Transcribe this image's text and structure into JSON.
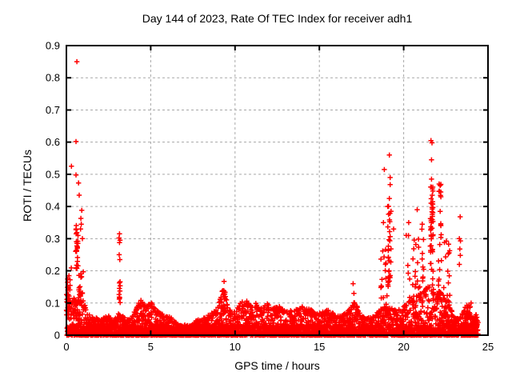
{
  "chart_data": {
    "type": "scatter",
    "title": "Day 144 of 2023, Rate Of TEC Index for receiver adh1",
    "xlabel": "GPS time / hours",
    "ylabel": "ROTI / TECUs",
    "xlim": [
      0,
      25
    ],
    "ylim": [
      0,
      0.9
    ],
    "xticks": [
      0,
      5,
      10,
      15,
      20,
      25
    ],
    "yticks": [
      0,
      0.1,
      0.2,
      0.3,
      0.4,
      0.5,
      0.6,
      0.7,
      0.8,
      0.9
    ],
    "grid": true,
    "grid_color": "#a8a8a8",
    "axis_color": "#000000",
    "background": "#ffffff",
    "legend": "none",
    "marker": "plus",
    "marker_color": "#ff0000",
    "series": {
      "name": "ROTI",
      "x_end": 24.4,
      "dense_band_ymax": 0.032,
      "envelope": [
        [
          0,
          0.13
        ],
        [
          0.3,
          0.12
        ],
        [
          0.6,
          0.11
        ],
        [
          0.9,
          0.12
        ],
        [
          1.2,
          0.08
        ],
        [
          1.5,
          0.06
        ],
        [
          2,
          0.05
        ],
        [
          2.5,
          0.06
        ],
        [
          2.8,
          0.045
        ],
        [
          3.1,
          0.07
        ],
        [
          3.4,
          0.06
        ],
        [
          3.8,
          0.05
        ],
        [
          4.2,
          0.09
        ],
        [
          4.4,
          0.115
        ],
        [
          4.7,
          0.09
        ],
        [
          5,
          0.105
        ],
        [
          5.3,
          0.08
        ],
        [
          5.7,
          0.065
        ],
        [
          6.2,
          0.055
        ],
        [
          6.6,
          0.035
        ],
        [
          7,
          0.025
        ],
        [
          7.4,
          0.03
        ],
        [
          7.8,
          0.05
        ],
        [
          8.2,
          0.055
        ],
        [
          8.6,
          0.07
        ],
        [
          9,
          0.09
        ],
        [
          9.35,
          0.16
        ],
        [
          9.6,
          0.08
        ],
        [
          10,
          0.075
        ],
        [
          10.3,
          0.1
        ],
        [
          10.7,
          0.11
        ],
        [
          11,
          0.09
        ],
        [
          11.3,
          0.105
        ],
        [
          11.6,
          0.08
        ],
        [
          11.9,
          0.1
        ],
        [
          12.3,
          0.085
        ],
        [
          12.7,
          0.09
        ],
        [
          13.1,
          0.075
        ],
        [
          13.5,
          0.08
        ],
        [
          13.9,
          0.09
        ],
        [
          14.3,
          0.085
        ],
        [
          14.7,
          0.075
        ],
        [
          15.1,
          0.07
        ],
        [
          15.5,
          0.08
        ],
        [
          15.9,
          0.065
        ],
        [
          16.3,
          0.06
        ],
        [
          16.7,
          0.075
        ],
        [
          17.1,
          0.105
        ],
        [
          17.5,
          0.06
        ],
        [
          17.9,
          0.055
        ],
        [
          18.3,
          0.065
        ],
        [
          18.6,
          0.08
        ],
        [
          19,
          0.1
        ],
        [
          19.3,
          0.09
        ],
        [
          19.6,
          0.075
        ],
        [
          20,
          0.09
        ],
        [
          20.3,
          0.11
        ],
        [
          20.6,
          0.12
        ],
        [
          21,
          0.13
        ],
        [
          21.4,
          0.15
        ],
        [
          21.7,
          0.16
        ],
        [
          22,
          0.14
        ],
        [
          22.3,
          0.13
        ],
        [
          22.6,
          0.11
        ],
        [
          22.9,
          0.07
        ],
        [
          23.1,
          0.05
        ],
        [
          23.4,
          0.06
        ],
        [
          23.65,
          0.09
        ],
        [
          23.85,
          0.08
        ],
        [
          24.1,
          0.05
        ],
        [
          24.25,
          0.065
        ],
        [
          24.4,
          0.04
        ]
      ],
      "clusters": [
        {
          "x": 0.12,
          "sx": 0.1,
          "y0": 0.05,
          "y1": 0.185,
          "n": 22
        },
        {
          "x": 0.62,
          "sx": 0.07,
          "y0": 0.2,
          "y1": 0.345,
          "n": 24
        },
        {
          "x": 0.85,
          "sx": 0.12,
          "y0": 0.1,
          "y1": 0.2,
          "n": 16
        },
        {
          "x": 3.15,
          "sx": 0.04,
          "y0": 0.09,
          "y1": 0.175,
          "n": 10
        },
        {
          "x": 9.35,
          "sx": 0.07,
          "y0": 0.07,
          "y1": 0.155,
          "n": 12
        },
        {
          "x": 18.9,
          "sx": 0.25,
          "y0": 0.1,
          "y1": 0.3,
          "n": 20
        },
        {
          "x": 19.15,
          "sx": 0.1,
          "y0": 0.15,
          "y1": 0.42,
          "n": 24
        },
        {
          "x": 20.7,
          "sx": 0.5,
          "y0": 0.1,
          "y1": 0.33,
          "n": 30
        },
        {
          "x": 21.66,
          "sx": 0.07,
          "y0": 0.38,
          "y1": 0.465,
          "n": 16
        },
        {
          "x": 21.66,
          "sx": 0.09,
          "y0": 0.14,
          "y1": 0.4,
          "n": 30
        },
        {
          "x": 22.15,
          "sx": 0.09,
          "y0": 0.1,
          "y1": 0.47,
          "n": 26
        },
        {
          "x": 22.55,
          "sx": 0.2,
          "y0": 0.08,
          "y1": 0.3,
          "n": 20
        },
        {
          "x": 23.8,
          "sx": 0.15,
          "y0": 0.04,
          "y1": 0.095,
          "n": 12
        },
        {
          "x": 24.25,
          "sx": 0.1,
          "y0": 0.02,
          "y1": 0.065,
          "n": 10
        }
      ],
      "outliers": [
        [
          0.62,
          0.85
        ],
        [
          0.57,
          0.602
        ],
        [
          0.3,
          0.525
        ],
        [
          0.57,
          0.498
        ],
        [
          0.72,
          0.473
        ],
        [
          0.76,
          0.435
        ],
        [
          0.91,
          0.388
        ],
        [
          0.86,
          0.363
        ],
        [
          0.88,
          0.345
        ],
        [
          0.84,
          0.33
        ],
        [
          0.95,
          0.3
        ],
        [
          0.29,
          0.209
        ],
        [
          1.0,
          0.197
        ],
        [
          0.15,
          0.185
        ],
        [
          3.15,
          0.315
        ],
        [
          3.12,
          0.302
        ],
        [
          3.18,
          0.295
        ],
        [
          3.15,
          0.288
        ],
        [
          3.13,
          0.25
        ],
        [
          3.17,
          0.235
        ],
        [
          9.35,
          0.167
        ],
        [
          17.0,
          0.16
        ],
        [
          17.05,
          0.13
        ],
        [
          19.15,
          0.56
        ],
        [
          18.85,
          0.515
        ],
        [
          19.2,
          0.49
        ],
        [
          19.2,
          0.468
        ],
        [
          19.15,
          0.425
        ],
        [
          19.05,
          0.4
        ],
        [
          19.25,
          0.385
        ],
        [
          18.8,
          0.35
        ],
        [
          19.4,
          0.33
        ],
        [
          20.8,
          0.39
        ],
        [
          20.3,
          0.35
        ],
        [
          21.1,
          0.345
        ],
        [
          20.15,
          0.31
        ],
        [
          21.62,
          0.605
        ],
        [
          21.68,
          0.598
        ],
        [
          21.65,
          0.545
        ],
        [
          21.65,
          0.485
        ],
        [
          22.1,
          0.47
        ],
        [
          22.2,
          0.445
        ],
        [
          23.35,
          0.368
        ],
        [
          23.3,
          0.3
        ],
        [
          23.37,
          0.293
        ],
        [
          23.33,
          0.268
        ],
        [
          23.36,
          0.248
        ],
        [
          23.3,
          0.22
        ],
        [
          24.0,
          0.1
        ]
      ]
    }
  }
}
